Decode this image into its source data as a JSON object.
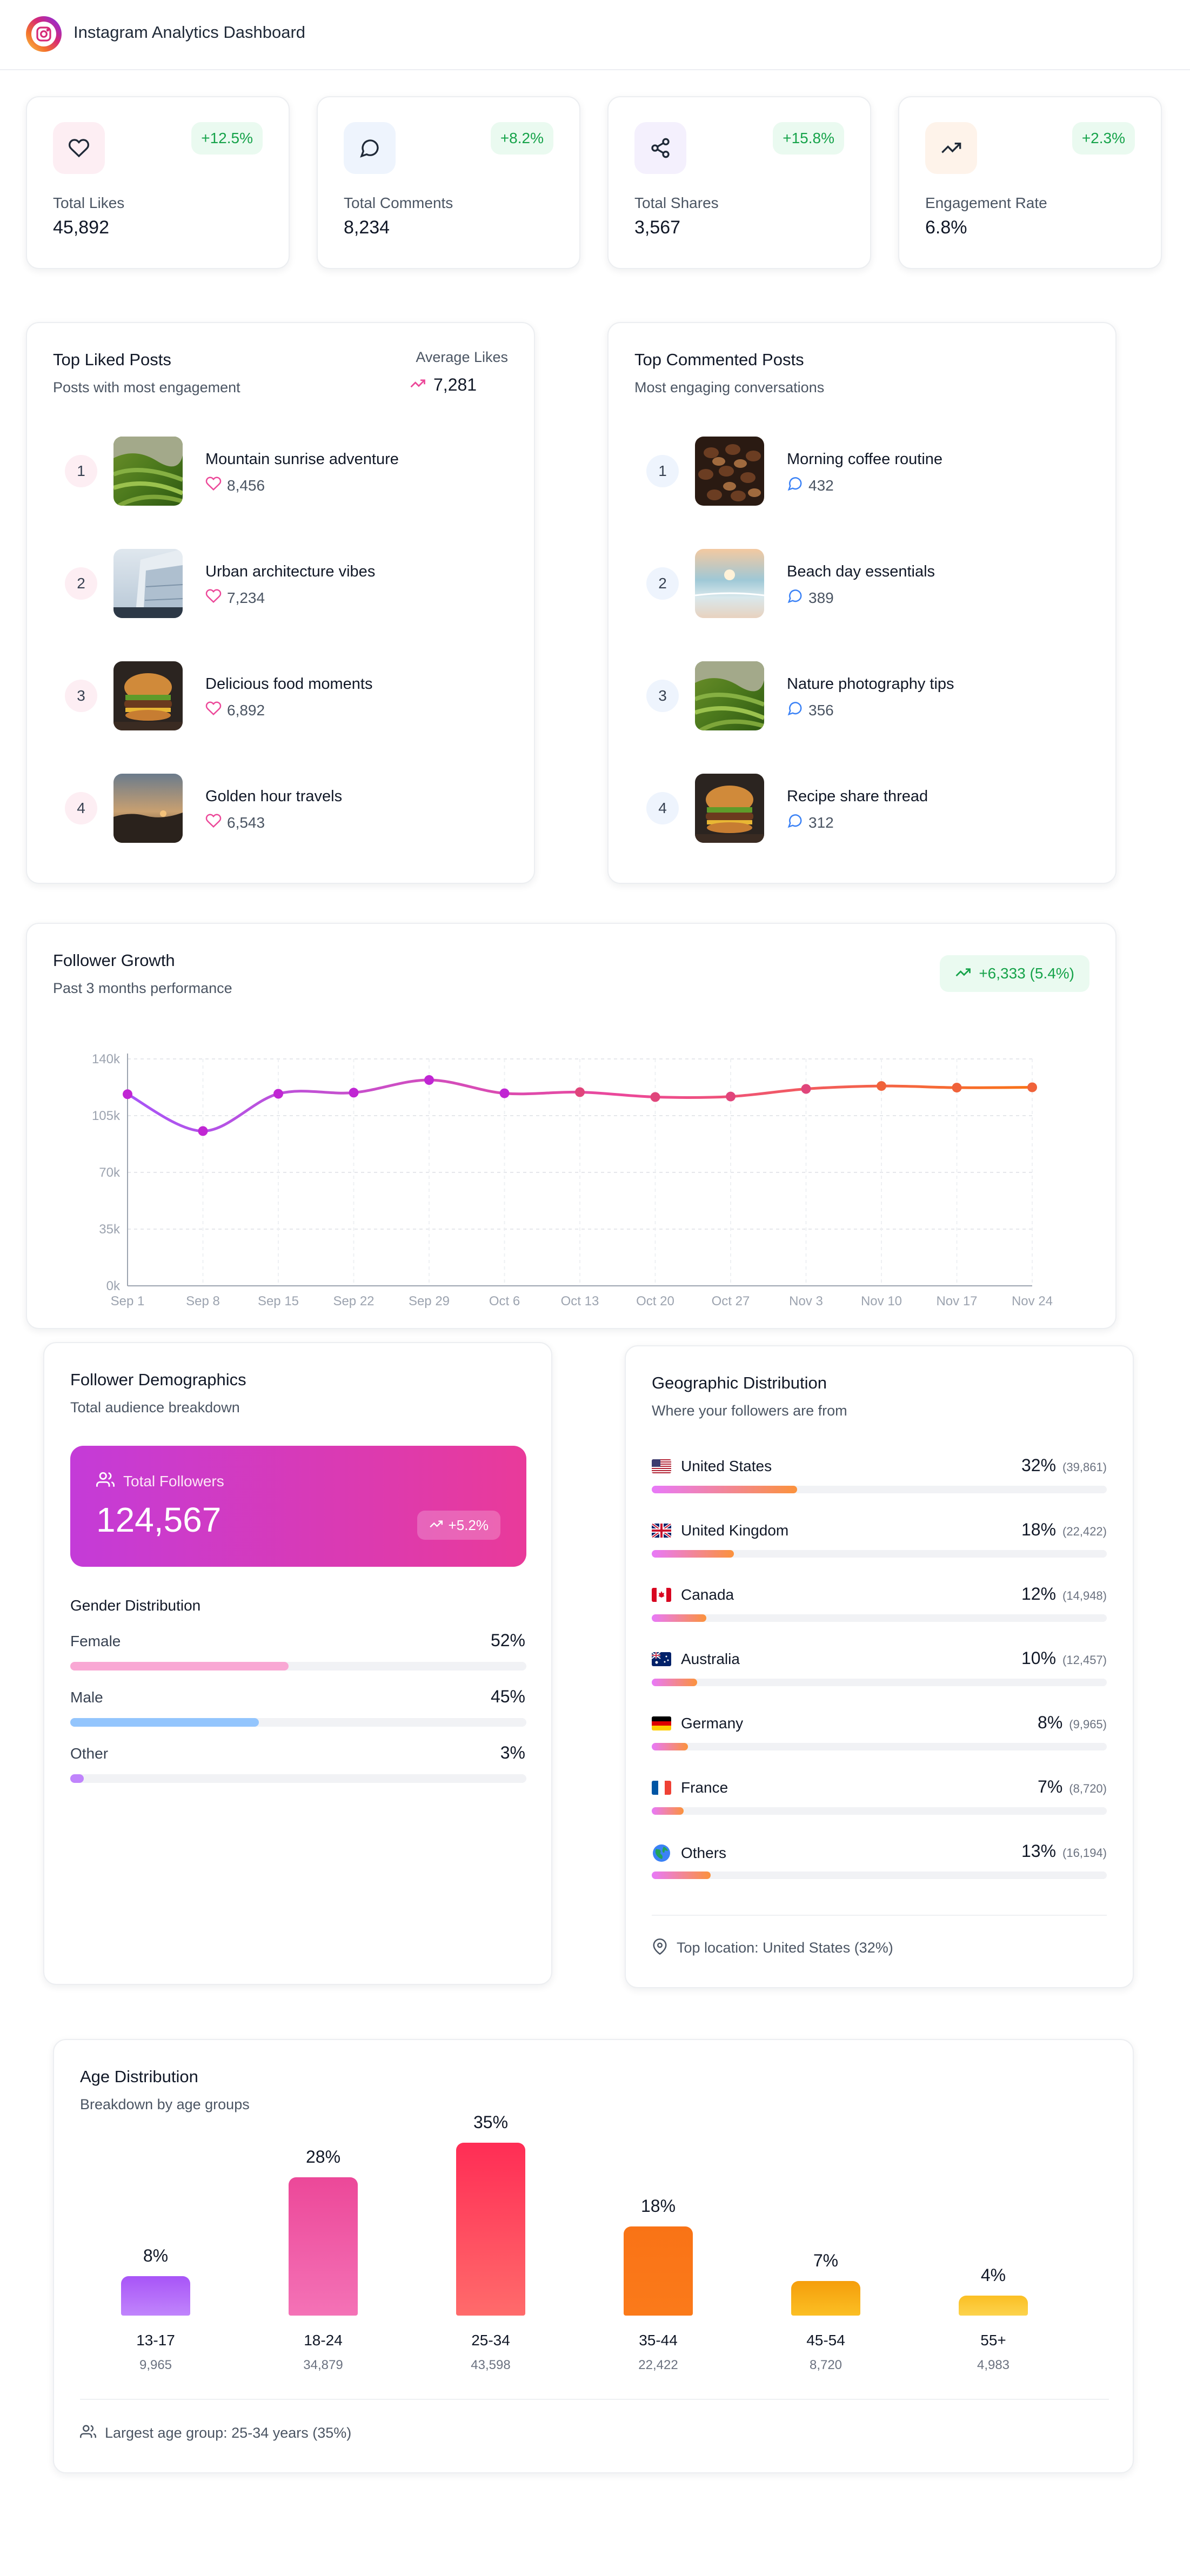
{
  "header": {
    "title": "Instagram Analytics Dashboard"
  },
  "stats": [
    {
      "label": "Total Likes",
      "value": "45,892",
      "change": "+12.5%"
    },
    {
      "label": "Total Comments",
      "value": "8,234",
      "change": "+8.2%"
    },
    {
      "label": "Total Shares",
      "value": "3,567",
      "change": "+15.8%"
    },
    {
      "label": "Engagement Rate",
      "value": "6.8%",
      "change": "+2.3%"
    }
  ],
  "top_liked": {
    "title": "Top Liked Posts",
    "subtitle": "Posts with most engagement",
    "avg_label": "Average Likes",
    "avg_value": "7,281",
    "posts": [
      {
        "rank": "1",
        "name": "Mountain sunrise adventure",
        "count": "8,456",
        "image": "green-hills"
      },
      {
        "rank": "2",
        "name": "Urban architecture vibes",
        "count": "7,234",
        "image": "glass-building"
      },
      {
        "rank": "3",
        "name": "Delicious food moments",
        "count": "6,892",
        "image": "burger"
      },
      {
        "rank": "4",
        "name": "Golden hour travels",
        "count": "6,543",
        "image": "sunset-road"
      }
    ]
  },
  "top_commented": {
    "title": "Top Commented Posts",
    "subtitle": "Most engaging conversations",
    "posts": [
      {
        "rank": "1",
        "name": "Morning coffee routine",
        "count": "432",
        "image": "coffee-beans"
      },
      {
        "rank": "2",
        "name": "Beach day essentials",
        "count": "389",
        "image": "beach"
      },
      {
        "rank": "3",
        "name": "Nature photography tips",
        "count": "356",
        "image": "green-hills"
      },
      {
        "rank": "4",
        "name": "Recipe share thread",
        "count": "312",
        "image": "burger"
      }
    ]
  },
  "growth": {
    "title": "Follower Growth",
    "subtitle": "Past 3 months performance",
    "badge": "+6,333 (5.4%)"
  },
  "chart_data": {
    "type": "line",
    "categories": [
      "Sep 1",
      "Sep 8",
      "Sep 15",
      "Sep 22",
      "Sep 29",
      "Oct 6",
      "Oct 13",
      "Oct 20",
      "Oct 27",
      "Nov 3",
      "Nov 10",
      "Nov 17",
      "Nov 24"
    ],
    "values": [
      118234,
      95500,
      118500,
      119200,
      127000,
      118800,
      119500,
      116500,
      116800,
      121500,
      123300,
      122300,
      122500
    ],
    "y_ticks": [
      "0k",
      "35k",
      "70k",
      "105k",
      "140k"
    ],
    "ylim": [
      0,
      140000
    ],
    "grid": true,
    "colors": {
      "start": "#a855f7",
      "end": "#f97316",
      "point": "#c026d3"
    }
  },
  "demographics": {
    "title": "Follower Demographics",
    "subtitle": "Total audience breakdown",
    "total_label": "Total Followers",
    "total_value": "124,567",
    "total_change": "+5.2%",
    "gender_title": "Gender Distribution",
    "genders": [
      {
        "label": "Female",
        "pct": "52%",
        "value": 52,
        "color": "#f9a8d4"
      },
      {
        "label": "Male",
        "pct": "45%",
        "value": 45,
        "color": "#93c5fd"
      },
      {
        "label": "Other",
        "pct": "3%",
        "value": 3,
        "color": "#c084fc"
      }
    ]
  },
  "geography": {
    "title": "Geographic Distribution",
    "subtitle": "Where your followers are from",
    "countries": [
      {
        "name": "United States",
        "pct": "32%",
        "count": "(39,861)",
        "value": 32,
        "flag": "us-flag"
      },
      {
        "name": "United Kingdom",
        "pct": "18%",
        "count": "(22,422)",
        "value": 18,
        "flag": "uk-flag"
      },
      {
        "name": "Canada",
        "pct": "12%",
        "count": "(14,948)",
        "value": 12,
        "flag": "ca-flag"
      },
      {
        "name": "Australia",
        "pct": "10%",
        "count": "(12,457)",
        "value": 10,
        "flag": "au-flag"
      },
      {
        "name": "Germany",
        "pct": "8%",
        "count": "(9,965)",
        "value": 8,
        "flag": "de-flag"
      },
      {
        "name": "France",
        "pct": "7%",
        "count": "(8,720)",
        "value": 7,
        "flag": "fr-flag"
      },
      {
        "name": "Others",
        "pct": "13%",
        "count": "(16,194)",
        "value": 13,
        "flag": "globe"
      }
    ],
    "footer": "Top location: United States (32%)"
  },
  "age": {
    "title": "Age Distribution",
    "subtitle": "Breakdown by age groups",
    "groups": [
      {
        "label": "13-17",
        "pct": "8%",
        "count": "9,965",
        "value": 8,
        "color_top": "#a855f7",
        "color_bottom": "#c084fc"
      },
      {
        "label": "18-24",
        "pct": "28%",
        "count": "34,879",
        "value": 28,
        "color_top": "#ec4899",
        "color_bottom": "#f472b6"
      },
      {
        "label": "25-34",
        "pct": "35%",
        "count": "43,598",
        "value": 35,
        "color_top": "#ff2d55",
        "color_bottom": "#ff6b6b"
      },
      {
        "label": "35-44",
        "pct": "18%",
        "count": "22,422",
        "value": 18,
        "color_top": "#f97316",
        "color_bottom": "#fb7a1a"
      },
      {
        "label": "45-54",
        "pct": "7%",
        "count": "8,720",
        "value": 7,
        "color_top": "#f59e0b",
        "color_bottom": "#fbbf24"
      },
      {
        "label": "55+",
        "pct": "4%",
        "count": "4,983",
        "value": 4,
        "color_top": "#fbbf24",
        "color_bottom": "#fcd34d"
      }
    ],
    "footer": "Largest age group: 25-34 years (35%)"
  }
}
